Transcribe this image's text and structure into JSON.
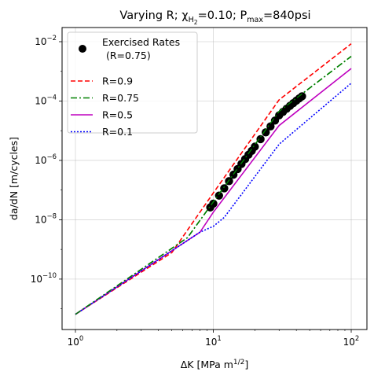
{
  "chart_data": {
    "type": "line",
    "title": {
      "main": "Varying R; χ",
      "sub1": "H",
      "sub2": "2",
      "mid": "=0.10; P",
      "sub3": "max",
      "tail": "=840psi"
    },
    "xlabel": {
      "main": "ΔK [MPa m",
      "sup": "1/2",
      "tail": "]"
    },
    "ylabel": "da/dN [m/cycles]",
    "xscale": "log",
    "yscale": "log",
    "xlim": [
      0.8,
      130
    ],
    "ylim": [
      2e-12,
      0.03
    ],
    "grid": true,
    "legend_position": "upper-left",
    "x_ticks": [
      {
        "value": 1,
        "base": "10",
        "exp": "0"
      },
      {
        "value": 10,
        "base": "10",
        "exp": "1"
      },
      {
        "value": 100,
        "base": "10",
        "exp": "2"
      }
    ],
    "y_ticks": [
      {
        "value": 1e-10,
        "base": "10",
        "exp": "−10"
      },
      {
        "value": 1e-08,
        "base": "10",
        "exp": "−8"
      },
      {
        "value": 1e-06,
        "base": "10",
        "exp": "−6"
      },
      {
        "value": 0.0001,
        "base": "10",
        "exp": "−4"
      },
      {
        "value": 0.01,
        "base": "10",
        "exp": "−2"
      }
    ],
    "series": [
      {
        "name": "R=0.9",
        "color": "#ff0000",
        "dash": "6,3",
        "x": [
          1,
          5,
          10,
          30,
          100
        ],
        "y": [
          6.5e-12,
          7.8e-10,
          8e-08,
          0.00011,
          0.0085
        ]
      },
      {
        "name": "R=0.75",
        "color": "#008000",
        "dash": "8,3,2,3",
        "x": [
          1,
          6.5,
          10,
          30,
          100
        ],
        "y": [
          6.5e-12,
          2.5e-09,
          4e-08,
          4.5e-05,
          0.0032
        ]
      },
      {
        "name": "R=0.5",
        "color": "#bf00bf",
        "dash": "",
        "x": [
          1,
          8,
          10,
          30,
          100
        ],
        "y": [
          6.5e-12,
          3.8e-09,
          1.8e-08,
          1.5e-05,
          0.00125
        ]
      },
      {
        "name": "R=0.1",
        "color": "#0000ff",
        "dash": "2,2",
        "x": [
          1,
          8,
          10,
          12,
          30,
          100
        ],
        "y": [
          6.5e-12,
          3.8e-09,
          6e-09,
          1.2e-08,
          3.5e-06,
          0.0004
        ]
      }
    ],
    "scatter": {
      "name": "Exercised Rates",
      "name_line2": "(R=0.75)",
      "color": "#000000",
      "x": [
        9.5,
        10,
        11,
        12,
        13,
        14,
        15,
        16,
        17,
        18,
        19,
        20,
        22,
        24,
        26,
        28,
        30,
        32,
        34,
        36,
        38,
        40,
        42,
        44
      ],
      "y": [
        2.6e-08,
        3.5e-08,
        6.5e-08,
        1.15e-07,
        2e-07,
        3.3e-07,
        5.1e-07,
        7.6e-07,
        1.1e-06,
        1.55e-06,
        2.1e-06,
        2.9e-06,
        5.2e-06,
        8.8e-06,
        1.4e-05,
        2.2e-05,
        3.3e-05,
        4.3e-05,
        5.5e-05,
        6.9e-05,
        8.5e-05,
        0.000103,
        0.000123,
        0.000145
      ]
    }
  }
}
